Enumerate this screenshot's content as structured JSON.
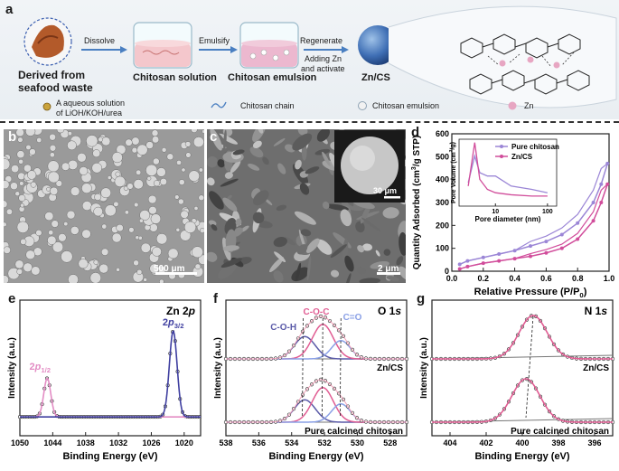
{
  "figure": {
    "letters": {
      "a": "a",
      "b": "b",
      "c": "c",
      "d": "d",
      "e": "e",
      "f": "f",
      "g": "g"
    },
    "schematic": {
      "source_line1": "Derived from",
      "source_line2": "seafood waste",
      "step_dissolve": "Dissolve",
      "solution_label": "Chitosan solution",
      "step_emulsify": "Emulsify",
      "emulsion_label": "Chitosan emulsion",
      "step_regenerate": "Regenerate",
      "step_adding_line1": "Adding Zn",
      "step_adding_line2": "and  activate",
      "product_label": "Zn/CS",
      "legend_aqueous_line1": "A aqueous solution",
      "legend_aqueous_line2": "of LiOH/KOH/urea",
      "legend_chain": "Chitosan chain",
      "legend_emulsion": "Chitosan emulsion",
      "legend_zn": "Zn"
    },
    "sem": {
      "b_scale": "500 μm",
      "c_scale": "2 μm",
      "c_inset_scale": "30 μm"
    }
  },
  "chart_data": [
    {
      "panel": "d",
      "type": "line",
      "xlabel": "Relative Pressure (P/P0)",
      "ylabel": "Quantity Adsorbed (cm³/g STP)",
      "xlim": [
        0.0,
        1.0
      ],
      "ylim": [
        0,
        600
      ],
      "xticks": [
        "0.0",
        "0.2",
        "0.4",
        "0.6",
        "0.8",
        "1.0"
      ],
      "yticks": [
        "0",
        "100",
        "200",
        "300",
        "400",
        "500",
        "600"
      ],
      "colors": {
        "pure": "#9b86d6",
        "zncs": "#d14d9b"
      },
      "series": [
        {
          "name": "Pure chitosan",
          "x": [
            0.05,
            0.1,
            0.2,
            0.3,
            0.4,
            0.5,
            0.6,
            0.7,
            0.8,
            0.9,
            0.95,
            0.99
          ],
          "y": [
            30,
            45,
            60,
            75,
            90,
            110,
            130,
            160,
            210,
            300,
            380,
            470
          ]
        },
        {
          "name": "Zn/CS",
          "x": [
            0.05,
            0.1,
            0.2,
            0.3,
            0.4,
            0.5,
            0.6,
            0.7,
            0.8,
            0.9,
            0.95,
            0.99
          ],
          "y": [
            10,
            20,
            35,
            45,
            55,
            65,
            80,
            100,
            140,
            220,
            300,
            380
          ]
        }
      ],
      "inset": {
        "type": "line",
        "xlabel": "Pore diameter (nm)",
        "ylabel": "Pore Volume (cm³/g)",
        "xscale": "log",
        "xticks": [
          "10",
          "100"
        ],
        "legend": [
          "Pure chitosan",
          "Zn/CS"
        ],
        "series": [
          {
            "name": "Pure chitosan",
            "x": [
              3,
              4,
              5,
              7,
              10,
              20,
              50,
              100
            ],
            "y": [
              0.35,
              0.75,
              0.5,
              0.45,
              0.45,
              0.3,
              0.25,
              0.2
            ]
          },
          {
            "name": "Zn/CS",
            "x": [
              3,
              4,
              5,
              7,
              10,
              20,
              50,
              100
            ],
            "y": [
              0.3,
              0.95,
              0.4,
              0.25,
              0.2,
              0.17,
              0.15,
              0.15
            ]
          }
        ]
      }
    },
    {
      "panel": "e",
      "type": "line",
      "title": "Zn 2p",
      "xlabel": "Binding Energy (eV)",
      "ylabel": "Intensity (a.u.)",
      "xlim": [
        1050,
        1017
      ],
      "xticks": [
        "1050",
        "1044",
        "1038",
        "1032",
        "1026",
        "1020"
      ],
      "peaks": [
        {
          "label": "2p1/2",
          "center": 1045,
          "color": "#e38cc4"
        },
        {
          "label": "2p3/2",
          "center": 1022,
          "color": "#3f3fa0"
        }
      ]
    },
    {
      "panel": "f",
      "type": "line",
      "title": "O 1s",
      "xlabel": "Binding Energy (eV)",
      "ylabel": "Intensity (a.u.)",
      "xlim": [
        538,
        527
      ],
      "xticks": [
        "538",
        "536",
        "534",
        "532",
        "530",
        "528"
      ],
      "peaks": [
        {
          "label": "C-O-H",
          "center": 533.2,
          "color": "#5a5aa8"
        },
        {
          "label": "C-O-C",
          "center": 532.1,
          "color": "#e15d93"
        },
        {
          "label": "C=O",
          "center": 531.0,
          "color": "#8aa0e6"
        }
      ],
      "series_labels": [
        "Zn/CS",
        "Pure calcined chitosan"
      ]
    },
    {
      "panel": "g",
      "type": "line",
      "title": "N 1s",
      "xlabel": "Binding Energy (eV)",
      "ylabel": "Intensity (a.u.)",
      "xlim": [
        405,
        395
      ],
      "xticks": [
        "404",
        "402",
        "400",
        "398",
        "396"
      ],
      "peaks": [
        {
          "center": 399.4,
          "color": "#e15d93"
        }
      ],
      "series_labels": [
        "Zn/CS",
        "Pure calcined chitosan"
      ]
    }
  ]
}
